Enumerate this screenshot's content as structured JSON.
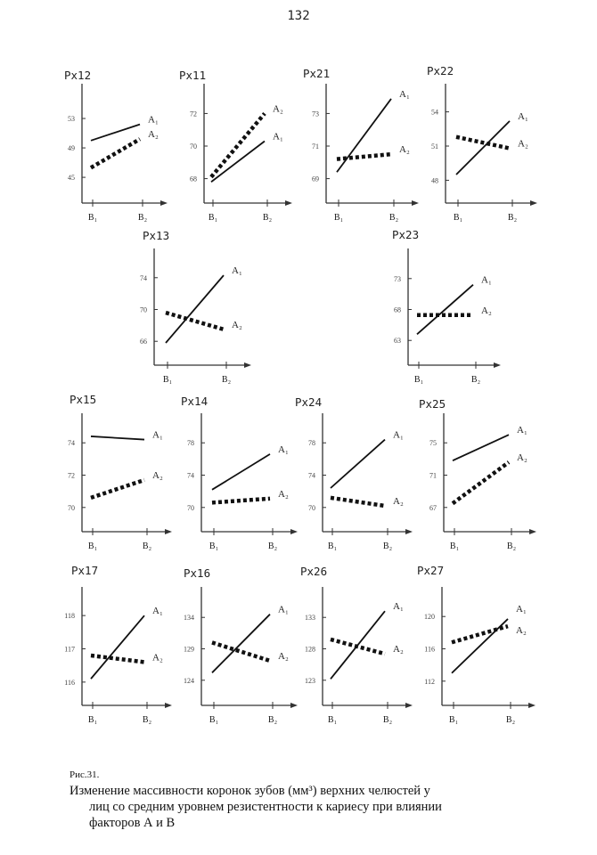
{
  "page_number": "132",
  "caption": {
    "label": "Рис.31.",
    "lines": [
      "Изменение массивности коронок зубов (мм³) верхних челюстей у",
      "лиц  со средним уровнем резистентности к кариесу при влиянии",
      "факторов А и В"
    ]
  },
  "chart_data": [
    {
      "type": "line",
      "title": "Px12",
      "categories": [
        "B₁",
        "B₂"
      ],
      "yticks": [
        45,
        49,
        53
      ],
      "ylim": [
        41.5,
        57
      ],
      "series": [
        {
          "name": "A₁",
          "values": [
            50,
            52.2
          ]
        },
        {
          "name": "A₂",
          "values": [
            46.3,
            50.2
          ]
        }
      ]
    },
    {
      "type": "line",
      "title": "Px11",
      "categories": [
        "B₁",
        "B₂"
      ],
      "yticks": [
        68,
        70,
        72
      ],
      "ylim": [
        66.5,
        73.5
      ],
      "series": [
        {
          "name": "A₂",
          "values": [
            68.1,
            72
          ]
        },
        {
          "name": "A₁",
          "values": [
            67.8,
            70.3
          ]
        }
      ]
    },
    {
      "type": "line",
      "title": "Px21",
      "categories": [
        "B₁",
        "B₂"
      ],
      "yticks": [
        69,
        71,
        73
      ],
      "ylim": [
        67.5,
        74.5
      ],
      "series": [
        {
          "name": "A₁",
          "values": [
            69.4,
            73.9
          ]
        },
        {
          "name": "A₂",
          "values": [
            70.2,
            70.5
          ]
        }
      ]
    },
    {
      "type": "line",
      "title": "Px22",
      "categories": [
        "B₁",
        "B₂"
      ],
      "yticks": [
        48,
        51,
        54
      ],
      "ylim": [
        46,
        56
      ],
      "series": [
        {
          "name": "A₁",
          "values": [
            48.5,
            53.2
          ]
        },
        {
          "name": "A₂",
          "values": [
            51.8,
            50.8
          ]
        }
      ]
    },
    {
      "type": "line",
      "title": "Px13",
      "categories": [
        "B₁",
        "B₂"
      ],
      "yticks": [
        66,
        70,
        74
      ],
      "ylim": [
        63,
        77
      ],
      "series": [
        {
          "name": "A₁",
          "values": [
            65.8,
            74.3
          ]
        },
        {
          "name": "A₂",
          "values": [
            69.6,
            67.5
          ]
        }
      ]
    },
    {
      "type": "line",
      "title": "Px23",
      "categories": [
        "B₁",
        "B₂"
      ],
      "yticks": [
        63,
        68,
        73
      ],
      "ylim": [
        59,
        77
      ],
      "series": [
        {
          "name": "A₁",
          "values": [
            64,
            72
          ]
        },
        {
          "name": "A₂",
          "values": [
            67.1,
            67.1
          ]
        }
      ]
    },
    {
      "type": "line",
      "title": "Px15",
      "categories": [
        "B₁",
        "B₂"
      ],
      "yticks": [
        70,
        72,
        74
      ],
      "ylim": [
        68.5,
        75.5
      ],
      "series": [
        {
          "name": "A₁",
          "values": [
            74.4,
            74.2
          ]
        },
        {
          "name": "A₂",
          "values": [
            70.6,
            71.7
          ]
        }
      ]
    },
    {
      "type": "line",
      "title": "Px14",
      "categories": [
        "B₁",
        "B₂"
      ],
      "yticks": [
        70,
        74,
        78
      ],
      "ylim": [
        67,
        81
      ],
      "series": [
        {
          "name": "A₁",
          "values": [
            72.2,
            76.6
          ]
        },
        {
          "name": "A₂",
          "values": [
            70.6,
            71.1
          ]
        }
      ]
    },
    {
      "type": "line",
      "title": "Px24",
      "categories": [
        "B₁",
        "B₂"
      ],
      "yticks": [
        70,
        74,
        78
      ],
      "ylim": [
        67,
        81
      ],
      "series": [
        {
          "name": "A₁",
          "values": [
            72.4,
            78.4
          ]
        },
        {
          "name": "A₂",
          "values": [
            71.2,
            70.2
          ]
        }
      ]
    },
    {
      "type": "line",
      "title": "Px25",
      "categories": [
        "B₁",
        "B₂"
      ],
      "yticks": [
        67,
        71,
        75
      ],
      "ylim": [
        64,
        78
      ],
      "series": [
        {
          "name": "A₁",
          "values": [
            72.8,
            76
          ]
        },
        {
          "name": "A₂",
          "values": [
            67.5,
            72.6
          ]
        }
      ]
    },
    {
      "type": "line",
      "title": "Px17",
      "categories": [
        "B₁",
        "B₂"
      ],
      "yticks": [
        116,
        117,
        118
      ],
      "ylim": [
        115.3,
        118.7
      ],
      "series": [
        {
          "name": "A₁",
          "values": [
            116.1,
            118
          ]
        },
        {
          "name": "A₂",
          "values": [
            116.8,
            116.6
          ]
        }
      ]
    },
    {
      "type": "line",
      "title": "Px16",
      "categories": [
        "B₁",
        "B₂"
      ],
      "yticks": [
        124,
        129,
        134
      ],
      "ylim": [
        120,
        138
      ],
      "series": [
        {
          "name": "A₁",
          "values": [
            125.2,
            134.5
          ]
        },
        {
          "name": "A₂",
          "values": [
            130,
            127.1
          ]
        }
      ]
    },
    {
      "type": "line",
      "title": "Px26",
      "categories": [
        "B₁",
        "B₂"
      ],
      "yticks": [
        123,
        128,
        133
      ],
      "ylim": [
        119,
        137
      ],
      "series": [
        {
          "name": "A₁",
          "values": [
            123.2,
            134
          ]
        },
        {
          "name": "A₂",
          "values": [
            129.5,
            127.2
          ]
        }
      ]
    },
    {
      "type": "line",
      "title": "Px27",
      "categories": [
        "B₁",
        "B₂"
      ],
      "yticks": [
        112,
        116,
        120
      ],
      "ylim": [
        109,
        123
      ],
      "series": [
        {
          "name": "A₁",
          "values": [
            113,
            119.7
          ]
        },
        {
          "name": "A₂",
          "values": [
            116.8,
            118.8
          ]
        }
      ]
    }
  ]
}
